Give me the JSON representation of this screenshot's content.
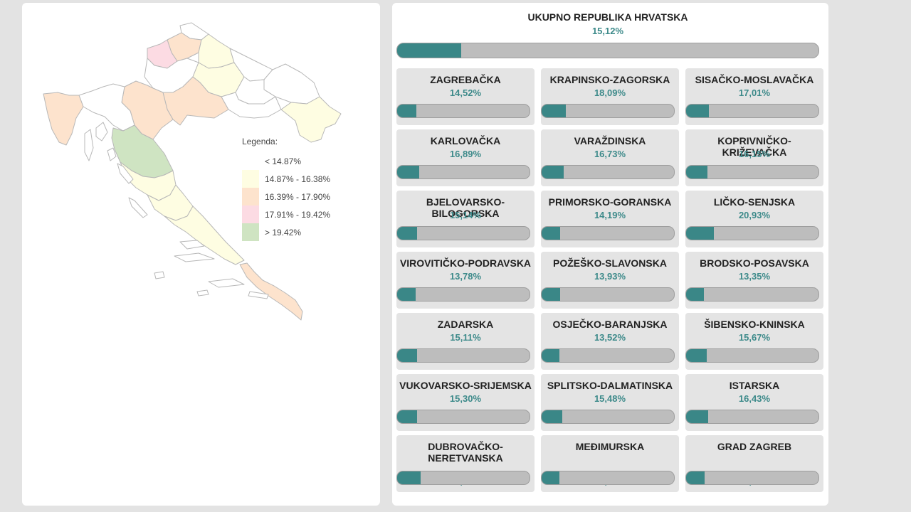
{
  "legend": {
    "title": "Legenda:",
    "items": [
      {
        "label": "< 14.87%",
        "color": "#ffffff"
      },
      {
        "label": "14.87% - 16.38%",
        "color": "#fefde2"
      },
      {
        "label": "16.39% - 17.90%",
        "color": "#fde3cd"
      },
      {
        "label": "17.91% - 19.42%",
        "color": "#fcdbe3"
      },
      {
        "label": "> 19.42%",
        "color": "#cfe4c2"
      }
    ]
  },
  "total": {
    "name": "UKUPNO REPUBLIKA HRVATSKA",
    "percent": "15,12%",
    "value": 15.12
  },
  "counties": [
    {
      "name": "ZAGREBAČKA",
      "percent": "14,52%",
      "value": 14.52
    },
    {
      "name": "KRAPINSKO-ZAGORSKA",
      "percent": "18,09%",
      "value": 18.09
    },
    {
      "name": "SISAČKO-MOSLAVAČKA",
      "percent": "17,01%",
      "value": 17.01
    },
    {
      "name": "KARLOVAČKA",
      "percent": "16,89%",
      "value": 16.89
    },
    {
      "name": "VARAŽDINSKA",
      "percent": "16,73%",
      "value": 16.73
    },
    {
      "name": "KOPRIVNIČKO-KRIŽEVAČKA",
      "percent": "16,15%",
      "value": 16.15
    },
    {
      "name": "BJELOVARSKO-BILOGORSKA",
      "percent": "15,14%",
      "value": 15.14
    },
    {
      "name": "PRIMORSKO-GORANSKA",
      "percent": "14,19%",
      "value": 14.19
    },
    {
      "name": "LIČKO-SENJSKA",
      "percent": "20,93%",
      "value": 20.93
    },
    {
      "name": "VIROVITIČKO-PODRAVSKA",
      "percent": "13,78%",
      "value": 13.78
    },
    {
      "name": "POŽEŠKO-SLAVONSKA",
      "percent": "13,93%",
      "value": 13.93
    },
    {
      "name": "BRODSKO-POSAVSKA",
      "percent": "13,35%",
      "value": 13.35
    },
    {
      "name": "ZADARSKA",
      "percent": "15,11%",
      "value": 15.11
    },
    {
      "name": "OSJEČKO-BARANJSKA",
      "percent": "13,52%",
      "value": 13.52
    },
    {
      "name": "ŠIBENSKO-KNINSKA",
      "percent": "15,67%",
      "value": 15.67
    },
    {
      "name": "VUKOVARSKO-SRIJEMSKA",
      "percent": "15,30%",
      "value": 15.3
    },
    {
      "name": "SPLITSKO-DALMATINSKA",
      "percent": "15,48%",
      "value": 15.48
    },
    {
      "name": "ISTARSKA",
      "percent": "16,43%",
      "value": 16.43
    },
    {
      "name": "DUBROVAČKO-\nNERETVANSKA",
      "percent": "17,89%",
      "value": 17.89
    },
    {
      "name": "MEĐIMURSKA",
      "percent": "13,48%",
      "value": 13.48
    },
    {
      "name": "GRAD ZAGREB",
      "percent": "14,06%",
      "value": 14.06
    }
  ]
}
